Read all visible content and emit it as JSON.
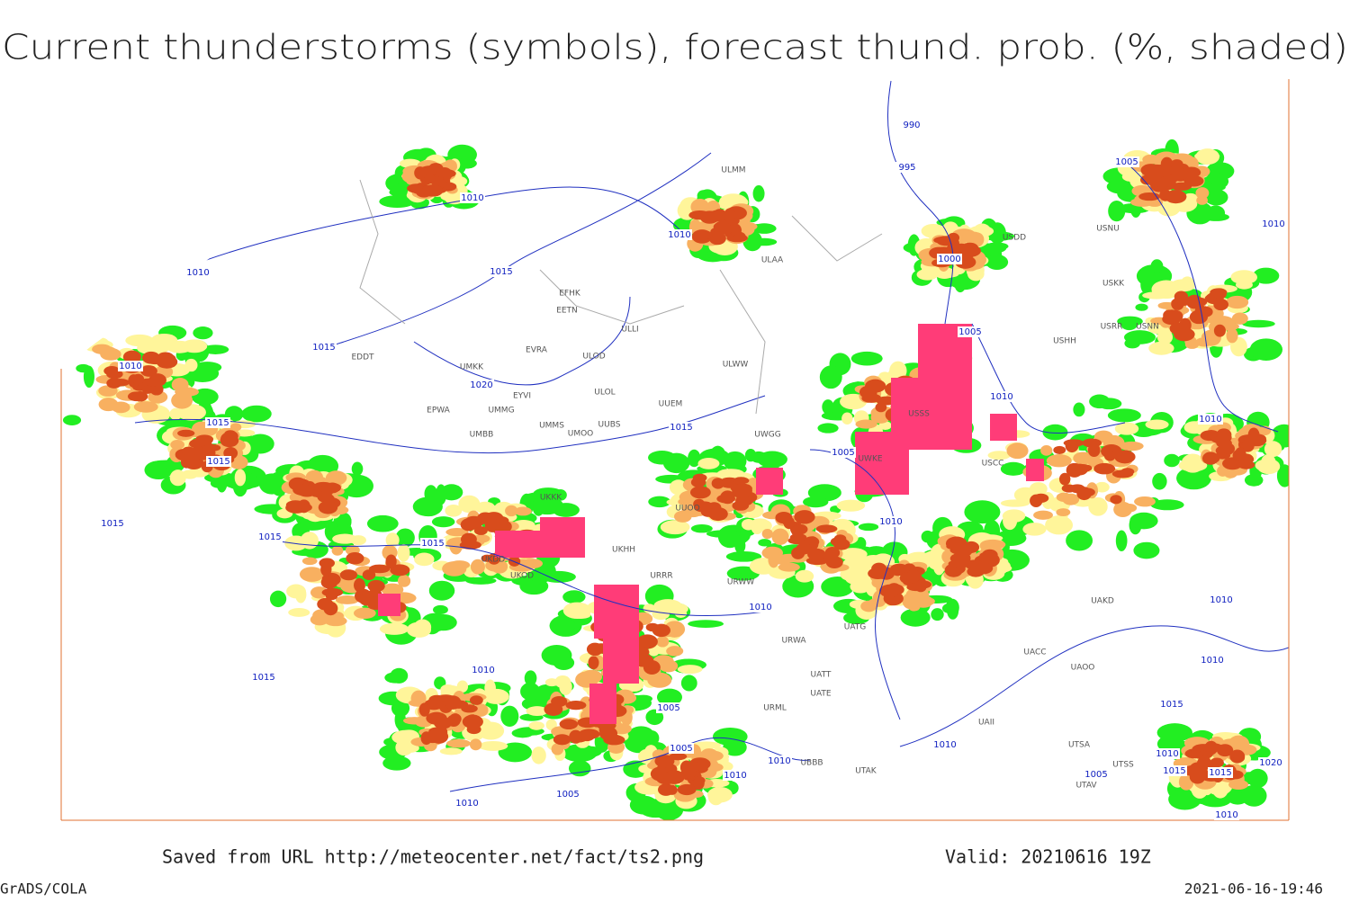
{
  "header": {
    "title": "Current thunderstorms (symbols), forecast thund. prob. (%, shaded)"
  },
  "footer": {
    "source": "Saved from URL http://meteocenter.net/fact/ts2.png",
    "valid": "Valid: 20210616 19Z",
    "software": "GrADS/COLA",
    "timestamp": "2021-06-16-19:46"
  },
  "isobar_labels": [
    "1010",
    "1015",
    "1015",
    "1015",
    "1015",
    "1015",
    "1010",
    "1010",
    "1015",
    "1010",
    "1020",
    "1015",
    "1015",
    "1010",
    "1015",
    "1010",
    "1005",
    "1005",
    "1010",
    "1010",
    "1005",
    "1010",
    "990",
    "995",
    "1000",
    "1005",
    "1010",
    "1005",
    "1010",
    "1005",
    "1010",
    "1010",
    "1010",
    "1010",
    "1015",
    "1015",
    "1015",
    "1010",
    "1005",
    "1020",
    "1010",
    "1010"
  ],
  "stations": [
    "EFHK",
    "EETN",
    "ULLI",
    "EVRA",
    "ULOD",
    "EDDT",
    "UMKK",
    "EYVI",
    "ULOL",
    "UUEM",
    "EPWA",
    "UMMG",
    "UMMS",
    "UUBS",
    "UMOO",
    "UMBB",
    "ULWW",
    "UWGG",
    "UWKE",
    "USSS",
    "USCC",
    "USHH",
    "USDD",
    "USNU",
    "USRR",
    "USNN",
    "USKK",
    "UKKK",
    "UUOO",
    "UKHH",
    "UKDD",
    "UKOD",
    "URRR",
    "URWW",
    "URWA",
    "UATG",
    "UATT",
    "UATE",
    "URML",
    "UBBB",
    "UTAK",
    "UAKD",
    "UACC",
    "UAOO",
    "UAII",
    "UTSA",
    "UTSS",
    "UTAV",
    "ULAA",
    "ULMM"
  ]
}
